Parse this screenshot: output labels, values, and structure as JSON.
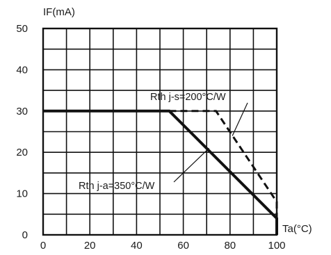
{
  "chart_data": {
    "type": "line",
    "title": "",
    "xlabel": "Ta(°C)",
    "ylabel": "IF(mA)",
    "xlim": [
      0,
      100
    ],
    "ylim": [
      0,
      50
    ],
    "x_ticks": [
      "0",
      "20",
      "40",
      "60",
      "80",
      "100"
    ],
    "y_ticks": [
      "0",
      "10",
      "20",
      "30",
      "40",
      "50"
    ],
    "grid": true,
    "series": [
      {
        "name": "Rth j-a=350°C/W",
        "style": "solid",
        "color": "#111111",
        "points": [
          [
            0,
            30
          ],
          [
            54,
            30
          ],
          [
            100,
            4
          ],
          [
            100,
            0
          ]
        ]
      },
      {
        "name": "Rth j-s=200°C/W",
        "style": "dashed",
        "color": "#111111",
        "points": [
          [
            54,
            30
          ],
          [
            74,
            30
          ],
          [
            100,
            8
          ],
          [
            100,
            0
          ]
        ]
      }
    ],
    "annotations": [
      {
        "text": "Rth j-s=200°C/W",
        "series": 1
      },
      {
        "text": "Rth j-a=350°C/W",
        "series": 0
      }
    ]
  }
}
